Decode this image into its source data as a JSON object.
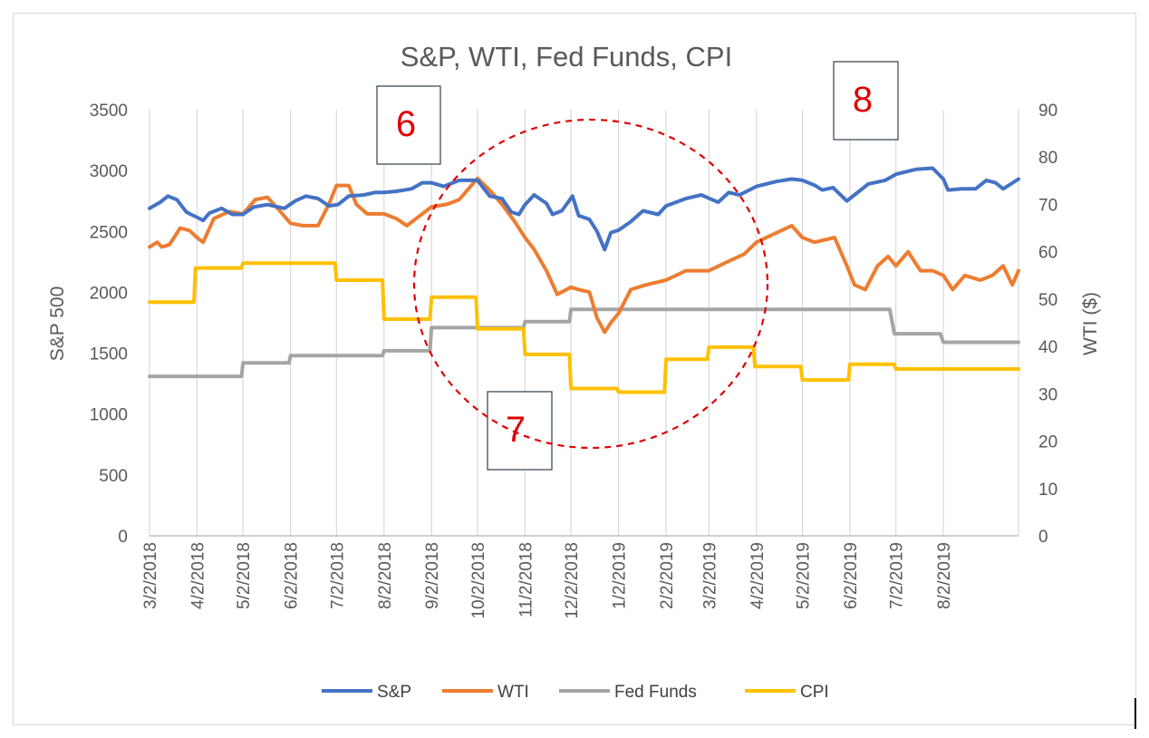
{
  "chart_data": {
    "type": "line",
    "title": "S&P, WTI, Fed Funds, CPI",
    "ylabel_left": "S&P 500",
    "ylabel_right": "WTI ($)",
    "xlabel": "",
    "ylim_left": [
      0,
      3500
    ],
    "ylim_right": [
      0,
      90
    ],
    "yticks_left": [
      0,
      500,
      1000,
      1500,
      2000,
      2500,
      3000,
      3500
    ],
    "yticks_right": [
      0,
      10,
      20,
      30,
      40,
      50,
      60,
      70,
      80,
      90
    ],
    "x_ticks": [
      "3/2/2018",
      "4/2/2018",
      "5/2/2018",
      "6/2/2018",
      "7/2/2018",
      "8/2/2018",
      "9/2/2018",
      "10/2/2018",
      "11/2/2018",
      "12/2/2018",
      "1/2/2019",
      "2/2/2019",
      "3/2/2019",
      "4/2/2019",
      "5/2/2019",
      "6/2/2019",
      "7/2/2019",
      "8/2/2019"
    ],
    "x_range": [
      "3/2/2018",
      "9/20/2019"
    ],
    "grid": "vertical",
    "legend_position": "bottom",
    "series": [
      {
        "name": "S&P",
        "axis": "left",
        "color": "#4472c4",
        "points": [
          [
            "3/2/2018",
            2690
          ],
          [
            "3/9/2018",
            2740
          ],
          [
            "3/14/2018",
            2790
          ],
          [
            "3/20/2018",
            2760
          ],
          [
            "3/26/2018",
            2660
          ],
          [
            "3/29/2018",
            2640
          ],
          [
            "4/3/2018",
            2610
          ],
          [
            "4/6/2018",
            2590
          ],
          [
            "4/10/2018",
            2650
          ],
          [
            "4/18/2018",
            2690
          ],
          [
            "4/25/2018",
            2640
          ],
          [
            "5/2/2018",
            2640
          ],
          [
            "5/9/2018",
            2700
          ],
          [
            "5/18/2018",
            2720
          ],
          [
            "5/29/2018",
            2690
          ],
          [
            "6/5/2018",
            2750
          ],
          [
            "6/12/2018",
            2790
          ],
          [
            "6/20/2018",
            2770
          ],
          [
            "6/27/2018",
            2710
          ],
          [
            "7/3/2018",
            2720
          ],
          [
            "7/10/2018",
            2790
          ],
          [
            "7/20/2018",
            2800
          ],
          [
            "7/27/2018",
            2820
          ],
          [
            "8/2/2018",
            2820
          ],
          [
            "8/10/2018",
            2830
          ],
          [
            "8/20/2018",
            2850
          ],
          [
            "8/27/2018",
            2900
          ],
          [
            "9/2/2018",
            2900
          ],
          [
            "9/10/2018",
            2870
          ],
          [
            "9/20/2018",
            2920
          ],
          [
            "10/2/2018",
            2920
          ],
          [
            "10/10/2018",
            2790
          ],
          [
            "10/18/2018",
            2770
          ],
          [
            "10/24/2018",
            2660
          ],
          [
            "10/29/2018",
            2640
          ],
          [
            "11/2/2018",
            2720
          ],
          [
            "11/8/2018",
            2800
          ],
          [
            "11/16/2018",
            2730
          ],
          [
            "11/20/2018",
            2640
          ],
          [
            "11/26/2018",
            2670
          ],
          [
            "12/3/2018",
            2790
          ],
          [
            "12/7/2018",
            2630
          ],
          [
            "12/14/2018",
            2600
          ],
          [
            "12/19/2018",
            2500
          ],
          [
            "12/24/2018",
            2350
          ],
          [
            "12/28/2018",
            2490
          ],
          [
            "1/2/2019",
            2510
          ],
          [
            "1/10/2019",
            2580
          ],
          [
            "1/18/2019",
            2670
          ],
          [
            "1/28/2019",
            2640
          ],
          [
            "2/2/2019",
            2710
          ],
          [
            "2/15/2019",
            2770
          ],
          [
            "2/25/2019",
            2800
          ],
          [
            "3/8/2019",
            2740
          ],
          [
            "3/15/2019",
            2820
          ],
          [
            "3/22/2019",
            2800
          ],
          [
            "4/2/2019",
            2870
          ],
          [
            "4/15/2019",
            2910
          ],
          [
            "4/25/2019",
            2930
          ],
          [
            "5/2/2019",
            2920
          ],
          [
            "5/10/2019",
            2880
          ],
          [
            "5/15/2019",
            2840
          ],
          [
            "5/22/2019",
            2860
          ],
          [
            "5/31/2019",
            2750
          ],
          [
            "6/5/2019",
            2800
          ],
          [
            "6/14/2019",
            2890
          ],
          [
            "6/25/2019",
            2920
          ],
          [
            "7/2/2019",
            2970
          ],
          [
            "7/15/2019",
            3010
          ],
          [
            "7/26/2019",
            3020
          ],
          [
            "8/2/2019",
            2930
          ],
          [
            "8/5/2019",
            2840
          ],
          [
            "8/14/2019",
            2850
          ],
          [
            "8/23/2019",
            2850
          ],
          [
            "8/30/2019",
            2920
          ],
          [
            "9/5/2019",
            2900
          ],
          [
            "9/10/2019",
            2850
          ],
          [
            "9/20/2019",
            2930
          ]
        ]
      },
      {
        "name": "WTI",
        "axis": "right",
        "color": "#ed7d31",
        "points": [
          [
            "3/2/2018",
            61
          ],
          [
            "3/7/2018",
            62
          ],
          [
            "3/10/2018",
            61
          ],
          [
            "3/15/2018",
            61.5
          ],
          [
            "3/22/2018",
            65
          ],
          [
            "3/28/2018",
            64.5
          ],
          [
            "4/2/2018",
            63
          ],
          [
            "4/6/2018",
            62
          ],
          [
            "4/13/2018",
            67
          ],
          [
            "4/23/2018",
            68.5
          ],
          [
            "5/2/2018",
            68
          ],
          [
            "5/10/2018",
            71
          ],
          [
            "5/18/2018",
            71.5
          ],
          [
            "5/25/2018",
            69
          ],
          [
            "6/2/2018",
            66
          ],
          [
            "6/10/2018",
            65.5
          ],
          [
            "6/20/2018",
            65.5
          ],
          [
            "6/27/2018",
            70
          ],
          [
            "7/2/2018",
            74
          ],
          [
            "7/10/2018",
            74
          ],
          [
            "7/15/2018",
            70
          ],
          [
            "7/22/2018",
            68
          ],
          [
            "8/2/2018",
            68
          ],
          [
            "8/10/2018",
            67
          ],
          [
            "8/17/2018",
            65.5
          ],
          [
            "8/27/2018",
            68
          ],
          [
            "9/2/2018",
            69.5
          ],
          [
            "9/12/2018",
            70
          ],
          [
            "9/20/2018",
            71
          ],
          [
            "10/2/2018",
            75.5
          ],
          [
            "10/10/2018",
            73
          ],
          [
            "10/18/2018",
            70
          ],
          [
            "10/26/2018",
            66.5
          ],
          [
            "11/2/2018",
            63
          ],
          [
            "11/8/2018",
            60.5
          ],
          [
            "11/16/2018",
            56
          ],
          [
            "11/23/2018",
            51
          ],
          [
            "12/2/2018",
            52.5
          ],
          [
            "12/7/2018",
            52
          ],
          [
            "12/14/2018",
            51.5
          ],
          [
            "12/19/2018",
            46
          ],
          [
            "12/24/2018",
            43
          ],
          [
            "12/28/2018",
            45
          ],
          [
            "1/2/2019",
            47
          ],
          [
            "1/10/2019",
            52
          ],
          [
            "1/20/2019",
            53
          ],
          [
            "2/2/2019",
            54
          ],
          [
            "2/15/2019",
            56
          ],
          [
            "2/27/2019",
            56
          ],
          [
            "3/2/2019",
            56
          ],
          [
            "3/15/2019",
            58
          ],
          [
            "3/25/2019",
            59.5
          ],
          [
            "4/2/2019",
            62
          ],
          [
            "4/15/2019",
            64
          ],
          [
            "4/25/2019",
            65.5
          ],
          [
            "5/2/2019",
            63
          ],
          [
            "5/10/2019",
            62
          ],
          [
            "5/23/2019",
            63
          ],
          [
            "5/31/2019",
            57
          ],
          [
            "6/5/2019",
            53
          ],
          [
            "6/12/2019",
            52
          ],
          [
            "6/20/2019",
            57
          ],
          [
            "6/27/2019",
            59
          ],
          [
            "7/2/2019",
            57
          ],
          [
            "7/10/2019",
            60
          ],
          [
            "7/18/2019",
            56
          ],
          [
            "7/26/2019",
            56
          ],
          [
            "8/2/2019",
            55
          ],
          [
            "8/8/2019",
            52
          ],
          [
            "8/16/2019",
            55
          ],
          [
            "8/26/2019",
            54
          ],
          [
            "9/3/2019",
            55
          ],
          [
            "9/10/2019",
            57
          ],
          [
            "9/16/2019",
            53
          ],
          [
            "9/20/2019",
            56
          ]
        ]
      },
      {
        "name": "Fed Funds",
        "axis": "left",
        "color": "#a5a5a5",
        "points": [
          [
            "3/2/2018",
            1310
          ],
          [
            "5/1/2018",
            1310
          ],
          [
            "5/2/2018",
            1420
          ],
          [
            "6/1/2018",
            1420
          ],
          [
            "6/2/2018",
            1480
          ],
          [
            "8/1/2018",
            1480
          ],
          [
            "8/2/2018",
            1520
          ],
          [
            "9/1/2018",
            1520
          ],
          [
            "9/2/2018",
            1710
          ],
          [
            "11/1/2018",
            1710
          ],
          [
            "11/2/2018",
            1760
          ],
          [
            "12/1/2018",
            1760
          ],
          [
            "12/2/2018",
            1860
          ],
          [
            "6/28/2019",
            1860
          ],
          [
            "7/1/2019",
            1660
          ],
          [
            "7/31/2019",
            1660
          ],
          [
            "8/2/2019",
            1590
          ],
          [
            "9/20/2019",
            1590
          ]
        ]
      },
      {
        "name": "CPI",
        "axis": "left",
        "color": "#ffc000",
        "points": [
          [
            "3/2/2018",
            1920
          ],
          [
            "3/31/2018",
            1920
          ],
          [
            "4/1/2018",
            2200
          ],
          [
            "5/1/2018",
            2200
          ],
          [
            "5/2/2018",
            2240
          ],
          [
            "7/1/2018",
            2240
          ],
          [
            "7/2/2018",
            2100
          ],
          [
            "8/1/2018",
            2100
          ],
          [
            "8/2/2018",
            1780
          ],
          [
            "9/1/2018",
            1780
          ],
          [
            "9/2/2018",
            1960
          ],
          [
            "10/1/2018",
            1960
          ],
          [
            "10/2/2018",
            1700
          ],
          [
            "11/1/2018",
            1700
          ],
          [
            "11/2/2018",
            1490
          ],
          [
            "12/1/2018",
            1490
          ],
          [
            "12/2/2018",
            1210
          ],
          [
            "1/1/2019",
            1210
          ],
          [
            "1/2/2019",
            1180
          ],
          [
            "2/1/2019",
            1180
          ],
          [
            "2/2/2019",
            1450
          ],
          [
            "3/1/2019",
            1450
          ],
          [
            "3/2/2019",
            1550
          ],
          [
            "3/31/2019",
            1550
          ],
          [
            "4/1/2019",
            1390
          ],
          [
            "5/1/2019",
            1390
          ],
          [
            "5/2/2019",
            1280
          ],
          [
            "6/1/2019",
            1280
          ],
          [
            "6/2/2019",
            1410
          ],
          [
            "7/1/2019",
            1410
          ],
          [
            "7/2/2019",
            1370
          ],
          [
            "9/20/2019",
            1370
          ]
        ]
      }
    ],
    "annotations": [
      {
        "type": "box",
        "text": "6"
      },
      {
        "type": "box",
        "text": "7"
      },
      {
        "type": "box",
        "text": "8"
      },
      {
        "type": "dashed-circle",
        "color": "#e00000"
      }
    ]
  }
}
